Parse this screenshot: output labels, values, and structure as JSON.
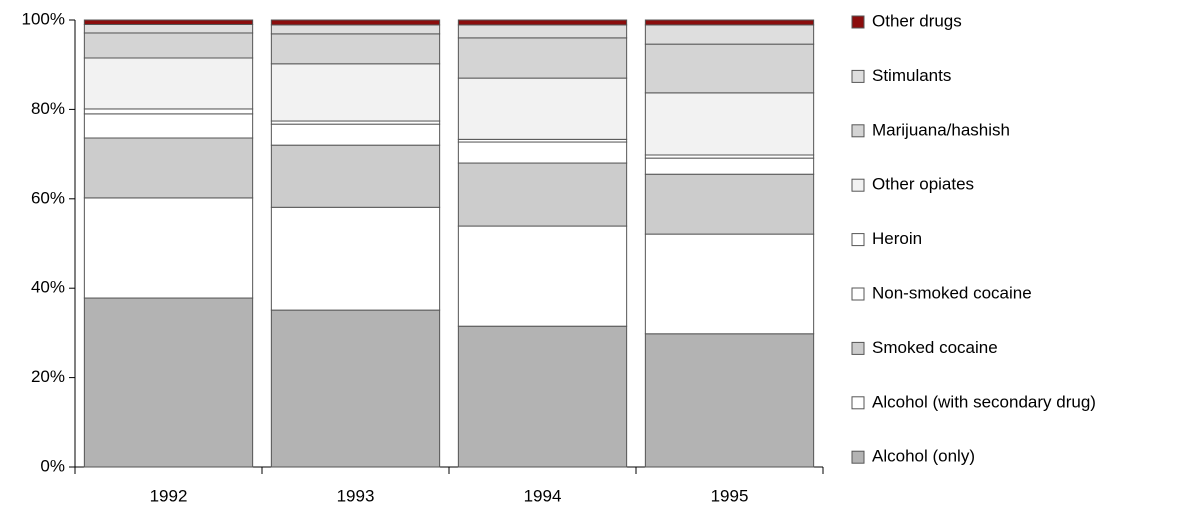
{
  "chart_data": {
    "type": "stacked_bar",
    "categories": [
      "1992",
      "1993",
      "1994",
      "1995"
    ],
    "series": [
      {
        "name": "Alcohol (only)",
        "color": "#b3b3b3",
        "values": [
          37.8,
          35.1,
          31.5,
          29.8
        ]
      },
      {
        "name": "Alcohol (with secondary drug)",
        "color": "#ffffff",
        "values": [
          22.4,
          23.0,
          22.4,
          22.3
        ]
      },
      {
        "name": "Smoked cocaine",
        "color": "#cccccc",
        "values": [
          13.4,
          13.9,
          14.1,
          13.4
        ]
      },
      {
        "name": "Non-smoked cocaine",
        "color": "#ffffff",
        "values": [
          5.4,
          4.7,
          4.7,
          3.6
        ]
      },
      {
        "name": "Heroin",
        "color": "#ffffff",
        "values": [
          1.1,
          0.7,
          0.6,
          0.7
        ]
      },
      {
        "name": "Other opiates",
        "color": "#f2f2f2",
        "values": [
          11.4,
          12.8,
          13.7,
          13.9
        ]
      },
      {
        "name": "Marijuana/hashish",
        "color": "#d4d4d4",
        "values": [
          5.6,
          6.7,
          9.0,
          10.9
        ]
      },
      {
        "name": "Stimulants",
        "color": "#dedede",
        "values": [
          1.9,
          2.0,
          2.9,
          4.3
        ]
      },
      {
        "name": "Other drugs",
        "color": "#8b0d0d",
        "values": [
          1.0,
          1.1,
          1.1,
          1.1
        ]
      }
    ],
    "ylim": [
      0,
      100
    ],
    "yticks": [
      {
        "value": 0,
        "label": "0%"
      },
      {
        "value": 20,
        "label": "20%"
      },
      {
        "value": 40,
        "label": "40%"
      },
      {
        "value": 60,
        "label": "60%"
      },
      {
        "value": 80,
        "label": "80%"
      },
      {
        "value": 100,
        "label": "100%"
      }
    ],
    "legend": "right"
  }
}
